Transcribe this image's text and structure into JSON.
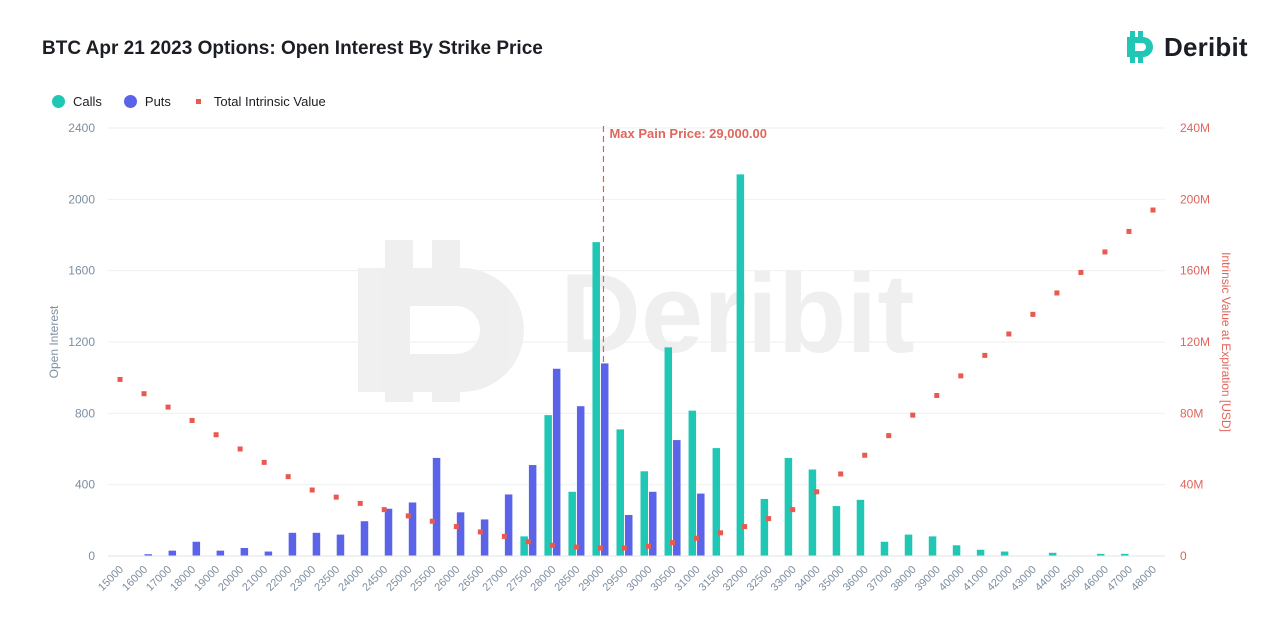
{
  "title": "BTC Apr 21 2023 Options: Open Interest By Strike Price",
  "logo": {
    "text": "Deribit",
    "icon": "deribit-logo-icon"
  },
  "watermark": "Deribit",
  "legend": [
    {
      "label": "Calls",
      "color": "#1fc7b4"
    },
    {
      "label": "Puts",
      "color": "#5b63e8"
    },
    {
      "label": "Total Intrinsic Value",
      "color": "#e8594f"
    }
  ],
  "annotation": {
    "label": "Max Pain Price: 29,000.00",
    "strike": "29000"
  },
  "chart_data": {
    "type": "bar",
    "categories": [
      "15000",
      "16000",
      "17000",
      "18000",
      "19000",
      "20000",
      "21000",
      "22000",
      "23000",
      "23500",
      "24000",
      "24500",
      "25000",
      "25500",
      "26000",
      "26500",
      "27000",
      "27500",
      "28000",
      "28500",
      "29000",
      "29500",
      "30000",
      "30500",
      "31000",
      "31500",
      "32000",
      "32500",
      "33000",
      "34000",
      "35000",
      "36000",
      "37000",
      "38000",
      "39000",
      "40000",
      "41000",
      "42000",
      "43000",
      "44000",
      "45000",
      "46000",
      "47000",
      "48000"
    ],
    "series": [
      {
        "name": "Calls",
        "axis": "left",
        "kind": "bar",
        "color": "#1fc7b4",
        "values": [
          0,
          0,
          0,
          0,
          0,
          0,
          0,
          0,
          0,
          0,
          0,
          0,
          0,
          0,
          0,
          0,
          0,
          110,
          790,
          360,
          1760,
          710,
          475,
          1170,
          815,
          605,
          2140,
          320,
          550,
          485,
          280,
          315,
          80,
          120,
          110,
          60,
          35,
          25,
          0,
          18,
          0,
          12,
          12,
          0
        ]
      },
      {
        "name": "Puts",
        "axis": "left",
        "kind": "bar",
        "color": "#5b63e8",
        "values": [
          0,
          10,
          30,
          80,
          30,
          45,
          25,
          130,
          130,
          120,
          195,
          265,
          300,
          550,
          245,
          205,
          345,
          510,
          1050,
          840,
          1080,
          230,
          360,
          650,
          350,
          0,
          0,
          0,
          0,
          0,
          0,
          0,
          0,
          0,
          0,
          0,
          0,
          0,
          0,
          0,
          0,
          0,
          0,
          0
        ]
      },
      {
        "name": "Total Intrinsic Value",
        "axis": "right",
        "kind": "scatter",
        "color": "#e8594f",
        "values": [
          99000000,
          91000000,
          83500000,
          76000000,
          68000000,
          60000000,
          52500000,
          44500000,
          37000000,
          33000000,
          29500000,
          26000000,
          22500000,
          19500000,
          16500000,
          13500000,
          11000000,
          8000000,
          6000000,
          5000000,
          4500000,
          4500000,
          5500000,
          7500000,
          10000000,
          13000000,
          16500000,
          21000000,
          26000000,
          36000000,
          46000000,
          56500000,
          67500000,
          79000000,
          90000000,
          101000000,
          112500000,
          124500000,
          135500000,
          147500000,
          159000000,
          170500000,
          182000000,
          194000000
        ]
      }
    ],
    "xlabel": "",
    "ylabel": "Open Interest",
    "y2label": "Intrinsic Value at Expiration [USD]",
    "ylim": [
      0,
      2400
    ],
    "y2lim": [
      0,
      240000000
    ],
    "yticks": [
      "0",
      "400",
      "800",
      "1200",
      "1600",
      "2000",
      "2400"
    ],
    "y2ticks": [
      "0",
      "40M",
      "80M",
      "120M",
      "160M",
      "200M",
      "240M"
    ],
    "grid": true,
    "legend_position": "top-left"
  }
}
